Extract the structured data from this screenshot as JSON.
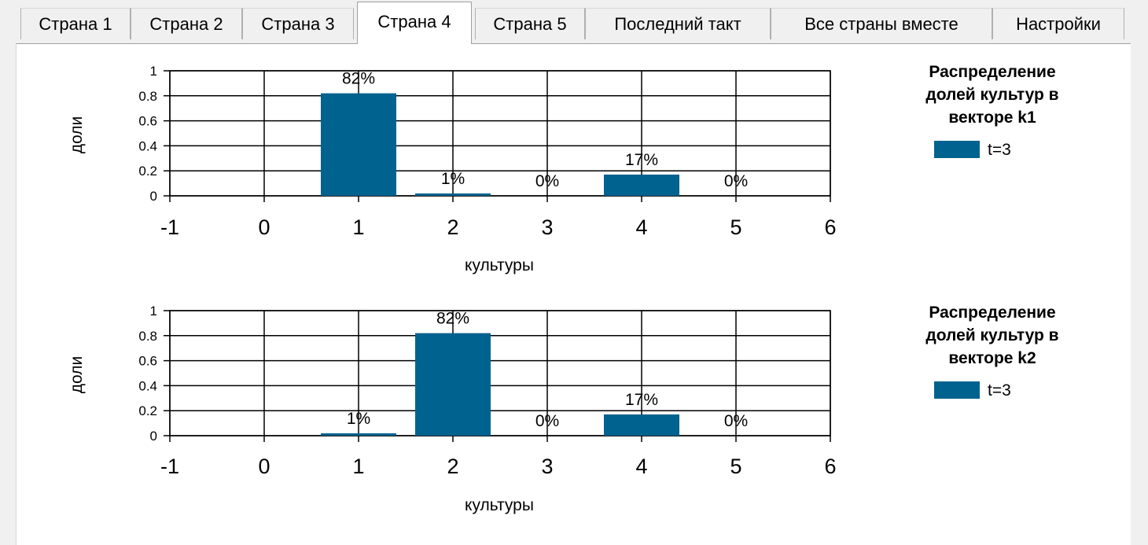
{
  "tabs": [
    {
      "label": "Страна 1",
      "active": false
    },
    {
      "label": "Страна 2",
      "active": false
    },
    {
      "label": "Страна 3",
      "active": false
    },
    {
      "label": "Страна 4",
      "active": true
    },
    {
      "label": "Страна 5",
      "active": false
    },
    {
      "label": "Последний такт",
      "active": false
    },
    {
      "label": "Все страны вместе",
      "active": false
    },
    {
      "label": "Настройки",
      "active": false
    }
  ],
  "colors": {
    "bar": "#00628f",
    "grid": "#000000"
  },
  "chart_data": [
    {
      "type": "bar",
      "title": "Распределение долей культур в векторе k1",
      "title_lines": [
        "Распределение",
        "долей культур в",
        "векторе k1"
      ],
      "xlabel": "культуры",
      "ylabel": "доли",
      "xlim": [
        -1,
        6
      ],
      "ylim": [
        0,
        1
      ],
      "x_ticks": [
        "-1",
        "0",
        "1",
        "2",
        "3",
        "4",
        "5",
        "6"
      ],
      "y_ticks": [
        "0",
        "0.2",
        "0.4",
        "0.6",
        "0.8",
        "1"
      ],
      "grid": true,
      "legend_position": "right",
      "series": [
        {
          "name": "t=3",
          "x": [
            1,
            2,
            3,
            4,
            5
          ],
          "values": [
            0.82,
            0.01,
            0.0,
            0.17,
            0.0
          ],
          "labels": [
            "82%",
            "1%",
            "0%",
            "17%",
            "0%"
          ]
        }
      ]
    },
    {
      "type": "bar",
      "title": "Распределение долей культур в векторе k2",
      "title_lines": [
        "Распределение",
        "долей культур в",
        "векторе k2"
      ],
      "xlabel": "культуры",
      "ylabel": "доли",
      "xlim": [
        -1,
        6
      ],
      "ylim": [
        0,
        1
      ],
      "x_ticks": [
        "-1",
        "0",
        "1",
        "2",
        "3",
        "4",
        "5",
        "6"
      ],
      "y_ticks": [
        "0",
        "0.2",
        "0.4",
        "0.6",
        "0.8",
        "1"
      ],
      "grid": true,
      "legend_position": "right",
      "series": [
        {
          "name": "t=3",
          "x": [
            1,
            2,
            3,
            4,
            5
          ],
          "values": [
            0.01,
            0.82,
            0.0,
            0.17,
            0.0
          ],
          "labels": [
            "1%",
            "82%",
            "0%",
            "17%",
            "0%"
          ]
        }
      ]
    }
  ]
}
